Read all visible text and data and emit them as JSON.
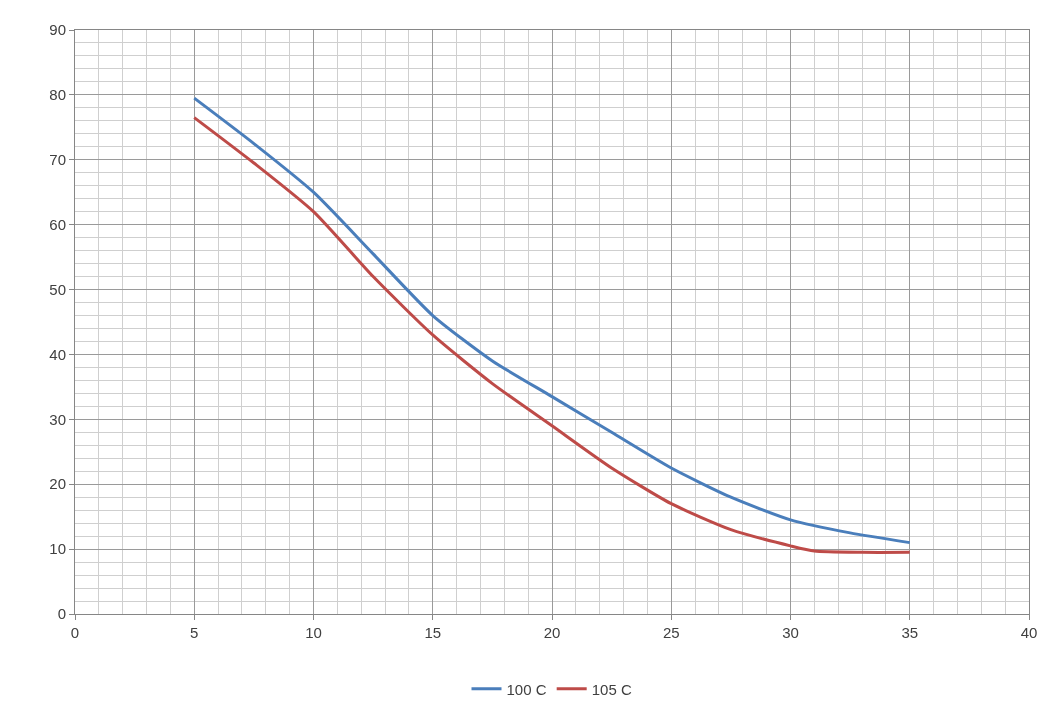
{
  "chart_data": {
    "type": "line",
    "xlim": [
      0,
      40
    ],
    "xticks": [
      0,
      5,
      10,
      15,
      20,
      25,
      30,
      35,
      40
    ],
    "ylim": [
      0,
      90
    ],
    "yticks": [
      0,
      10,
      20,
      30,
      40,
      50,
      60,
      70,
      80,
      90
    ],
    "grid": true,
    "legend": "bottom",
    "marker": "none",
    "line_style": "solid",
    "series": [
      {
        "name": "100 C",
        "color": "#4a7ebb",
        "x": [
          5,
          7.5,
          10,
          12.5,
          15,
          17.5,
          20,
          22.5,
          25,
          27.5,
          30,
          32.5,
          35
        ],
        "values": [
          79.5,
          72.5,
          65,
          55.5,
          46,
          39,
          33.5,
          28,
          22.5,
          18,
          14.5,
          12.5,
          11
        ]
      },
      {
        "name": "105 C",
        "color": "#be4b48",
        "x": [
          5,
          7.5,
          10,
          12.5,
          15,
          17.5,
          20,
          22.5,
          25,
          27.5,
          30,
          31,
          33,
          35
        ],
        "values": [
          76.5,
          69.5,
          62,
          52,
          43,
          35.5,
          29,
          22.5,
          17,
          13,
          10.5,
          9.7,
          9.5,
          9.5
        ]
      }
    ]
  }
}
